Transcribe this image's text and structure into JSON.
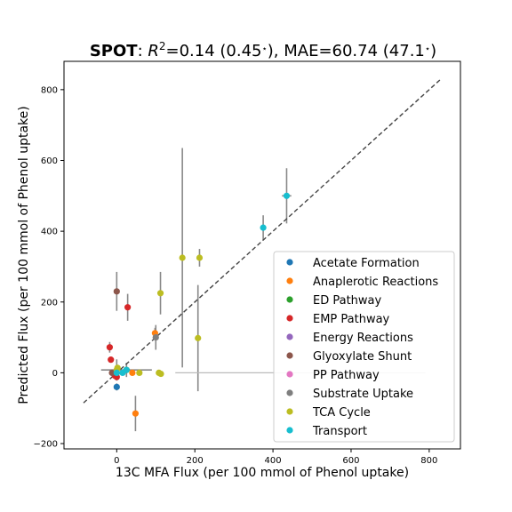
{
  "chart_data": {
    "type": "scatter",
    "title": {
      "method": "SPOT",
      "sep": ": ",
      "r2_symbol": "R",
      "r2_sup": "2",
      "r2_text": "=0.14 (0.45",
      "mae_text": "), MAE=60.74 (47.1",
      "close": ")",
      "star": "⋆"
    },
    "xlabel": "13C MFA Flux (per 100 mmol of Phenol uptake)",
    "ylabel": "Predicted Flux (per 100 mmol of Phenol uptake)",
    "xlim": [
      -135,
      880
    ],
    "ylim": [
      -215,
      880
    ],
    "xticks": [
      0,
      200,
      400,
      600,
      800
    ],
    "yticks": [
      -200,
      0,
      200,
      400,
      600,
      800
    ],
    "xtick_labels": [
      "0",
      "200",
      "400",
      "600",
      "800"
    ],
    "ytick_labels": [
      "−200",
      "0",
      "200",
      "400",
      "600",
      "800"
    ],
    "identity_line": {
      "from": [
        -85,
        -85
      ],
      "to": [
        830,
        830
      ],
      "color": "#444444",
      "style": "dashed"
    },
    "series": [
      {
        "name": "Acetate Formation",
        "color": "#1f77b4",
        "points": [
          {
            "x": 0,
            "y": -40,
            "yerr": 10,
            "xerr": 0
          }
        ]
      },
      {
        "name": "Anaplerotic Reactions",
        "color": "#ff7f0e",
        "points": [
          {
            "x": 48,
            "y": -115,
            "yerr": 50,
            "xerr": 0
          },
          {
            "x": 98,
            "y": 112,
            "yerr": 15,
            "xerr": 0
          },
          {
            "x": 40,
            "y": 0,
            "yerr": 0,
            "xerr": 0
          }
        ]
      },
      {
        "name": "ED Pathway",
        "color": "#2ca02c",
        "points": [
          {
            "x": 25,
            "y": 8,
            "yerr": 0,
            "xerr": 0
          }
        ]
      },
      {
        "name": "EMP Pathway",
        "color": "#d62728",
        "points": [
          {
            "x": -18,
            "y": 72,
            "yerr": 15,
            "xerr": 0
          },
          {
            "x": -15,
            "y": 37,
            "yerr": 0,
            "xerr": 0
          },
          {
            "x": 28,
            "y": 185,
            "yerr": 38,
            "xerr": 0
          },
          {
            "x": -5,
            "y": -8,
            "yerr": 0,
            "xerr": 0
          },
          {
            "x": 0,
            "y": -12,
            "yerr": 0,
            "xerr": 0
          }
        ]
      },
      {
        "name": "Energy Reactions",
        "color": "#9467bd",
        "points": []
      },
      {
        "name": "Glyoxylate Shunt",
        "color": "#8c564b",
        "points": [
          {
            "x": 0,
            "y": 230,
            "yerr": 55,
            "xerr": 0
          },
          {
            "x": -12,
            "y": 0,
            "yerr": 0,
            "xerr": 0
          }
        ]
      },
      {
        "name": "PP Pathway",
        "color": "#e377c2",
        "points": []
      },
      {
        "name": "Substrate Uptake",
        "color": "#7f7f7f",
        "points": [
          {
            "x": 100,
            "y": 100,
            "yerr": 35,
            "xerr": 0
          }
        ]
      },
      {
        "name": "TCA Cycle",
        "color": "#bcbd22",
        "points": [
          {
            "x": 168,
            "y": 325,
            "yerr": 310,
            "xerr": 0
          },
          {
            "x": 212,
            "y": 325,
            "yerr": 25,
            "xerr": 0
          },
          {
            "x": 208,
            "y": 98,
            "yerr": 150,
            "xerr": 0
          },
          {
            "x": 112,
            "y": 225,
            "yerr": 60,
            "xerr": 0
          },
          {
            "x": 108,
            "y": 0,
            "yerr": 0,
            "xerr": 0
          },
          {
            "x": 113,
            "y": -3,
            "yerr": 0,
            "xerr": 0
          },
          {
            "x": 58,
            "y": 0,
            "yerr": 0,
            "xerr": 0
          },
          {
            "x": 0,
            "y": 8,
            "yerr": 30,
            "xerr": 0
          },
          {
            "x": 2,
            "y": 14,
            "yerr": 0,
            "xerr": 0
          }
        ]
      },
      {
        "name": "Transport",
        "color": "#17becf",
        "points": [
          {
            "x": 435,
            "y": 500,
            "yerr": 78,
            "xerr": 12
          },
          {
            "x": 375,
            "y": 410,
            "yerr": 35,
            "xerr": 5
          },
          {
            "x": 25,
            "y": 8,
            "yerr": 20,
            "xerr": 65
          },
          {
            "x": 15,
            "y": 0,
            "yerr": 0,
            "xerr": 0
          },
          {
            "x": 0,
            "y": 0,
            "yerr": 0,
            "xerr": 0
          }
        ]
      }
    ],
    "legend_position": "lower-right",
    "grid": false,
    "horizontal_errorbars": [
      {
        "x0": 150,
        "x1": 790,
        "y": 0
      }
    ]
  }
}
